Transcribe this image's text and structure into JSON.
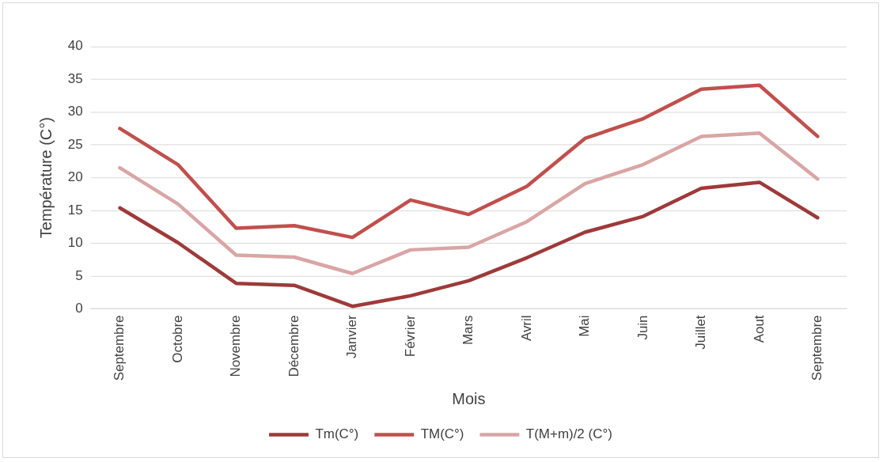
{
  "chart_data": {
    "type": "line",
    "xlabel": "Mois",
    "ylabel": "Température (C°)",
    "categories": [
      "Septembre",
      "Octobre",
      "Novembre",
      "Décembre",
      "Janvier",
      "Février",
      "Mars",
      "Avril",
      "Mai",
      "Juin",
      "Juillet",
      "Aout",
      "Septembre"
    ],
    "series": [
      {
        "name": "Tm(C°)",
        "color": "#9e3a3a",
        "values": [
          15.4,
          10.1,
          3.9,
          3.6,
          0.4,
          2.0,
          4.3,
          7.8,
          11.7,
          14.1,
          18.4,
          19.3,
          13.9
        ]
      },
      {
        "name": "TM(C°)",
        "color": "#c0504d",
        "values": [
          27.5,
          22.0,
          12.3,
          12.7,
          10.9,
          16.6,
          14.4,
          18.7,
          26.0,
          29.0,
          33.5,
          34.1,
          26.3
        ]
      },
      {
        "name": "T(M+m)/2 (C°)",
        "color": "#d9a5a5",
        "values": [
          21.5,
          16.0,
          8.2,
          7.9,
          5.4,
          9.0,
          9.4,
          13.3,
          19.1,
          22.0,
          26.3,
          26.8,
          19.8
        ]
      }
    ],
    "ylim": [
      0,
      40
    ],
    "yticks": [
      0,
      5,
      10,
      15,
      20,
      25,
      30,
      35,
      40
    ],
    "grid": "y",
    "legend": "bottom",
    "marker": "none",
    "line_style": "solid"
  }
}
